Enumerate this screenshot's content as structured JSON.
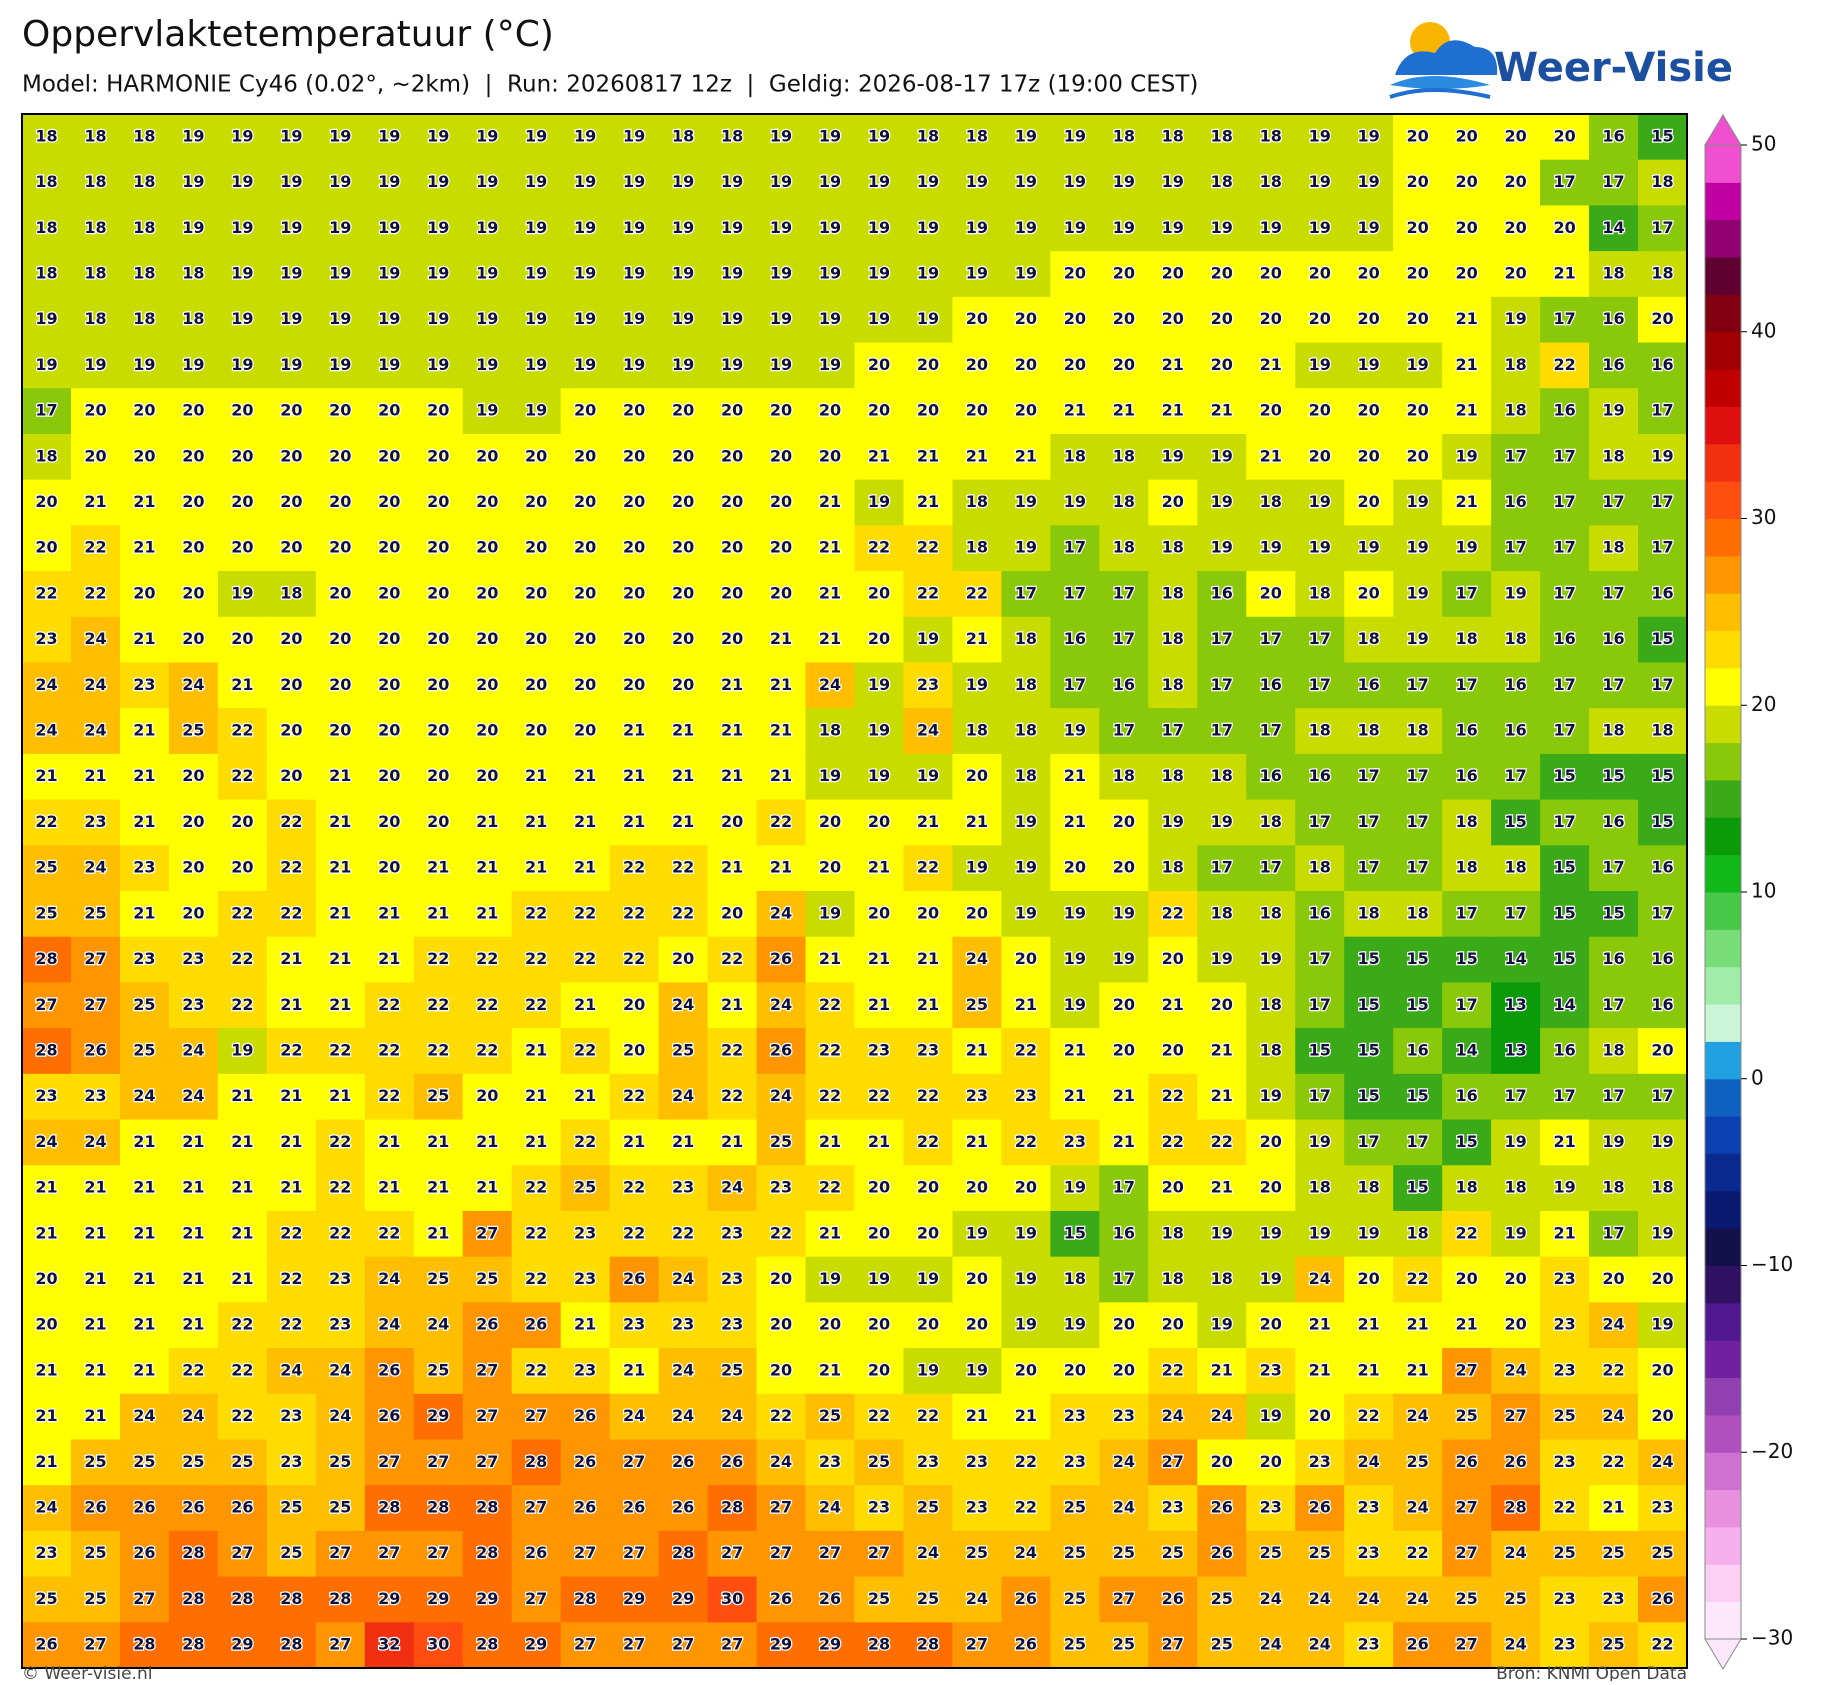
{
  "header": {
    "title": "Oppervlaktetemperatuur (°C)",
    "subtitle": "Model: HARMONIE Cy46 (0.02°, ~2km)  |  Run: 20260817 12z  |  Geldig: 2026-08-17 17z (19:00 CEST)",
    "logo": "Weer-Visie"
  },
  "map": {
    "rows": [
      [
        18,
        18,
        18,
        19,
        19,
        19,
        19,
        19,
        19,
        19,
        19,
        19,
        19,
        18,
        18,
        19,
        19,
        19,
        18,
        18,
        19,
        19,
        18,
        18,
        18,
        18,
        19,
        19,
        20,
        20,
        20,
        20,
        16,
        15
      ],
      [
        18,
        18,
        18,
        19,
        19,
        19,
        19,
        19,
        19,
        19,
        19,
        19,
        19,
        19,
        19,
        19,
        19,
        19,
        19,
        19,
        19,
        19,
        19,
        19,
        18,
        18,
        19,
        19,
        20,
        20,
        20,
        17,
        17,
        18
      ],
      [
        18,
        18,
        18,
        19,
        19,
        19,
        19,
        19,
        19,
        19,
        19,
        19,
        19,
        19,
        19,
        19,
        19,
        19,
        19,
        19,
        19,
        19,
        19,
        19,
        19,
        19,
        19,
        19,
        20,
        20,
        20,
        20,
        14,
        17
      ],
      [
        18,
        18,
        18,
        18,
        19,
        19,
        19,
        19,
        19,
        19,
        19,
        19,
        19,
        19,
        19,
        19,
        19,
        19,
        19,
        19,
        19,
        20,
        20,
        20,
        20,
        20,
        20,
        20,
        20,
        20,
        20,
        21,
        18,
        18
      ],
      [
        19,
        18,
        18,
        18,
        19,
        19,
        19,
        19,
        19,
        19,
        19,
        19,
        19,
        19,
        19,
        19,
        19,
        19,
        19,
        20,
        20,
        20,
        20,
        20,
        20,
        20,
        20,
        20,
        20,
        21,
        19,
        17,
        16,
        20
      ],
      [
        19,
        19,
        19,
        19,
        19,
        19,
        19,
        19,
        19,
        19,
        19,
        19,
        19,
        19,
        19,
        19,
        19,
        20,
        20,
        20,
        20,
        20,
        20,
        21,
        20,
        21,
        19,
        19,
        19,
        21,
        18,
        22,
        16,
        16
      ],
      [
        17,
        20,
        20,
        20,
        20,
        20,
        20,
        20,
        20,
        19,
        19,
        20,
        20,
        20,
        20,
        20,
        20,
        20,
        20,
        20,
        20,
        21,
        21,
        21,
        21,
        20,
        20,
        20,
        20,
        21,
        18,
        16,
        19,
        17
      ],
      [
        18,
        20,
        20,
        20,
        20,
        20,
        20,
        20,
        20,
        20,
        20,
        20,
        20,
        20,
        20,
        20,
        20,
        21,
        21,
        21,
        21,
        18,
        18,
        19,
        19,
        21,
        20,
        20,
        20,
        19,
        17,
        17,
        18,
        19
      ],
      [
        20,
        21,
        21,
        20,
        20,
        20,
        20,
        20,
        20,
        20,
        20,
        20,
        20,
        20,
        20,
        20,
        21,
        19,
        21,
        18,
        19,
        19,
        18,
        20,
        19,
        18,
        19,
        20,
        19,
        21,
        16,
        17,
        17,
        17
      ],
      [
        20,
        22,
        21,
        20,
        20,
        20,
        20,
        20,
        20,
        20,
        20,
        20,
        20,
        20,
        20,
        20,
        21,
        22,
        22,
        18,
        19,
        17,
        18,
        18,
        19,
        19,
        19,
        19,
        19,
        19,
        17,
        17,
        18,
        17
      ],
      [
        22,
        22,
        20,
        20,
        19,
        18,
        20,
        20,
        20,
        20,
        20,
        20,
        20,
        20,
        20,
        20,
        21,
        20,
        22,
        22,
        17,
        17,
        17,
        18,
        16,
        20,
        18,
        20,
        19,
        17,
        19,
        17,
        17,
        16
      ],
      [
        23,
        24,
        21,
        20,
        20,
        20,
        20,
        20,
        20,
        20,
        20,
        20,
        20,
        20,
        20,
        21,
        21,
        20,
        19,
        21,
        18,
        16,
        17,
        18,
        17,
        17,
        17,
        18,
        19,
        18,
        18,
        16,
        16,
        15
      ],
      [
        24,
        24,
        23,
        24,
        21,
        20,
        20,
        20,
        20,
        20,
        20,
        20,
        20,
        20,
        21,
        21,
        24,
        19,
        23,
        19,
        18,
        17,
        16,
        18,
        17,
        16,
        17,
        16,
        17,
        17,
        16,
        17,
        17,
        17
      ],
      [
        24,
        24,
        21,
        25,
        22,
        20,
        20,
        20,
        20,
        20,
        20,
        20,
        21,
        21,
        21,
        21,
        18,
        19,
        24,
        18,
        18,
        19,
        17,
        17,
        17,
        17,
        18,
        18,
        18,
        16,
        16,
        17,
        18,
        18
      ],
      [
        21,
        21,
        21,
        20,
        22,
        20,
        21,
        20,
        20,
        20,
        21,
        21,
        21,
        21,
        21,
        21,
        19,
        19,
        19,
        20,
        18,
        21,
        18,
        18,
        18,
        16,
        16,
        17,
        17,
        16,
        17,
        15,
        15,
        15
      ],
      [
        22,
        23,
        21,
        20,
        20,
        22,
        21,
        20,
        20,
        21,
        21,
        21,
        21,
        21,
        20,
        22,
        20,
        20,
        21,
        21,
        19,
        21,
        20,
        19,
        19,
        18,
        17,
        17,
        17,
        18,
        15,
        17,
        16,
        15
      ],
      [
        25,
        24,
        23,
        20,
        20,
        22,
        21,
        20,
        21,
        21,
        21,
        21,
        22,
        22,
        21,
        21,
        20,
        21,
        22,
        19,
        19,
        20,
        20,
        18,
        17,
        17,
        18,
        17,
        17,
        18,
        18,
        15,
        17,
        16
      ],
      [
        25,
        25,
        21,
        20,
        22,
        22,
        21,
        21,
        21,
        21,
        22,
        22,
        22,
        22,
        20,
        24,
        19,
        20,
        20,
        20,
        19,
        19,
        19,
        22,
        18,
        18,
        16,
        18,
        18,
        17,
        17,
        15,
        15,
        17
      ],
      [
        28,
        27,
        23,
        23,
        22,
        21,
        21,
        21,
        22,
        22,
        22,
        22,
        22,
        20,
        22,
        26,
        21,
        21,
        21,
        24,
        20,
        19,
        19,
        20,
        19,
        19,
        17,
        15,
        15,
        15,
        14,
        15,
        16,
        16
      ],
      [
        27,
        27,
        25,
        23,
        22,
        21,
        21,
        22,
        22,
        22,
        22,
        21,
        20,
        24,
        21,
        24,
        22,
        21,
        21,
        25,
        21,
        19,
        20,
        21,
        20,
        18,
        17,
        15,
        15,
        17,
        13,
        14,
        17,
        16
      ],
      [
        28,
        26,
        25,
        24,
        19,
        22,
        22,
        22,
        22,
        22,
        21,
        22,
        20,
        25,
        22,
        26,
        22,
        23,
        23,
        21,
        22,
        21,
        20,
        20,
        21,
        18,
        15,
        15,
        16,
        14,
        13,
        16,
        18,
        20
      ],
      [
        23,
        23,
        24,
        24,
        21,
        21,
        21,
        22,
        25,
        20,
        21,
        21,
        22,
        24,
        22,
        24,
        22,
        22,
        22,
        23,
        23,
        21,
        21,
        22,
        21,
        19,
        17,
        15,
        15,
        16,
        17,
        17,
        17,
        17
      ],
      [
        24,
        24,
        21,
        21,
        21,
        21,
        22,
        21,
        21,
        21,
        21,
        22,
        21,
        21,
        21,
        25,
        21,
        21,
        22,
        21,
        22,
        23,
        21,
        22,
        22,
        20,
        19,
        17,
        17,
        15,
        19,
        21,
        19,
        19
      ],
      [
        21,
        21,
        21,
        21,
        21,
        21,
        22,
        21,
        21,
        21,
        22,
        25,
        22,
        23,
        24,
        23,
        22,
        20,
        20,
        20,
        20,
        19,
        17,
        20,
        21,
        20,
        18,
        18,
        15,
        18,
        18,
        19,
        18,
        18
      ],
      [
        21,
        21,
        21,
        21,
        21,
        22,
        22,
        22,
        21,
        27,
        22,
        23,
        22,
        22,
        23,
        22,
        21,
        20,
        20,
        19,
        19,
        15,
        16,
        18,
        19,
        19,
        19,
        19,
        18,
        22,
        19,
        21,
        17,
        19
      ],
      [
        20,
        21,
        21,
        21,
        21,
        22,
        23,
        24,
        25,
        25,
        22,
        23,
        26,
        24,
        23,
        20,
        19,
        19,
        19,
        20,
        19,
        18,
        17,
        18,
        18,
        19,
        24,
        20,
        22,
        20,
        20,
        23,
        20,
        20
      ],
      [
        20,
        21,
        21,
        21,
        22,
        22,
        23,
        24,
        24,
        26,
        26,
        21,
        23,
        23,
        23,
        20,
        20,
        20,
        20,
        20,
        19,
        19,
        20,
        20,
        19,
        20,
        21,
        21,
        21,
        21,
        20,
        23,
        24,
        19
      ],
      [
        21,
        21,
        21,
        22,
        22,
        24,
        24,
        26,
        25,
        27,
        22,
        23,
        21,
        24,
        25,
        20,
        21,
        20,
        19,
        19,
        20,
        20,
        20,
        22,
        21,
        23,
        21,
        21,
        21,
        27,
        24,
        23,
        22,
        20
      ],
      [
        21,
        21,
        24,
        24,
        22,
        23,
        24,
        26,
        29,
        27,
        27,
        26,
        24,
        24,
        24,
        22,
        25,
        22,
        22,
        21,
        21,
        23,
        23,
        24,
        24,
        19,
        20,
        22,
        24,
        25,
        27,
        25,
        24,
        20
      ],
      [
        21,
        25,
        25,
        25,
        25,
        23,
        25,
        27,
        27,
        27,
        28,
        26,
        27,
        26,
        26,
        24,
        23,
        25,
        23,
        23,
        22,
        23,
        24,
        27,
        20,
        20,
        23,
        24,
        25,
        26,
        26,
        23,
        22,
        24
      ],
      [
        24,
        26,
        26,
        26,
        26,
        25,
        25,
        28,
        28,
        28,
        27,
        26,
        26,
        26,
        28,
        27,
        24,
        23,
        25,
        23,
        22,
        25,
        24,
        23,
        26,
        23,
        26,
        23,
        24,
        27,
        28,
        22,
        21,
        23
      ],
      [
        23,
        25,
        26,
        28,
        27,
        25,
        27,
        27,
        27,
        28,
        26,
        27,
        27,
        28,
        27,
        27,
        27,
        27,
        24,
        25,
        24,
        25,
        25,
        25,
        26,
        25,
        25,
        23,
        22,
        27,
        24,
        25,
        25,
        25
      ],
      [
        25,
        25,
        27,
        28,
        28,
        28,
        28,
        29,
        29,
        29,
        27,
        28,
        29,
        29,
        30,
        26,
        26,
        25,
        25,
        24,
        26,
        25,
        27,
        26,
        25,
        24,
        24,
        24,
        24,
        25,
        25,
        23,
        23,
        26
      ],
      [
        26,
        27,
        28,
        28,
        29,
        28,
        27,
        32,
        30,
        28,
        29,
        27,
        27,
        27,
        27,
        29,
        29,
        28,
        28,
        27,
        26,
        25,
        25,
        27,
        25,
        24,
        24,
        23,
        26,
        27,
        24,
        23,
        25,
        22
      ]
    ]
  },
  "colorbar": {
    "lim": [
      -30,
      50
    ],
    "ticks": [
      50,
      40,
      30,
      20,
      10,
      0,
      {
        "value": -10,
        "label": "−10"
      },
      {
        "value": -20,
        "label": "−20"
      },
      {
        "value": -30,
        "label": "−30"
      }
    ],
    "colors": [
      "#fde8fb",
      "#fcd0f5",
      "#f7b0ee",
      "#e890e0",
      "#d070d0",
      "#b050c0",
      "#9040b0",
      "#7020a0",
      "#501890",
      "#301060",
      "#14104a",
      "#0a1a70",
      "#0a2a90",
      "#0a40b0",
      "#1060c0",
      "#20a0e0",
      "#ccf5d8",
      "#a0eca8",
      "#78dc78",
      "#48c848",
      "#10b818",
      "#0a9a0a",
      "#3aaa18",
      "#8ac80a",
      "#c8dc00",
      "#ffff00",
      "#ffdc00",
      "#ffbf00",
      "#ff9500",
      "#ff6e00",
      "#ff4e10",
      "#f03010",
      "#e01010",
      "#c00000",
      "#a00000",
      "#800010",
      "#600030",
      "#900070",
      "#c000a0",
      "#f050d0"
    ]
  },
  "footer": {
    "left": "© Weer-visie.nl",
    "right": "Bron: KNMI Open Data"
  }
}
